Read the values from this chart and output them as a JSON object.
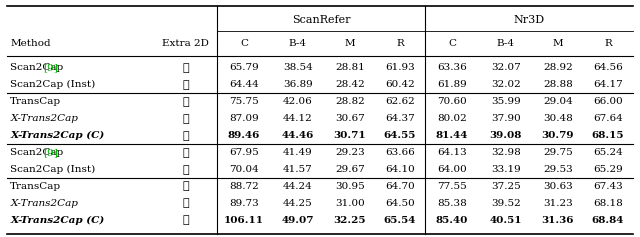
{
  "headers_top": [
    "ScanRefer",
    "Nr3D"
  ],
  "headers_sub": [
    "Method",
    "Extra 2D",
    "C",
    "B-4",
    "M",
    "R",
    "C",
    "B-4",
    "M",
    "R"
  ],
  "rows": [
    [
      "Scan2Cap [9]",
      "x_no",
      "65.79",
      "38.54",
      "28.81",
      "61.93",
      "63.36",
      "32.07",
      "28.92",
      "64.56",
      false
    ],
    [
      "Scan2Cap (Inst)",
      "x_no",
      "64.44",
      "36.89",
      "28.42",
      "60.42",
      "61.89",
      "32.02",
      "28.88",
      "64.17",
      false
    ],
    [
      "TransCap",
      "x_no",
      "75.75",
      "42.06",
      "28.82",
      "62.62",
      "70.60",
      "35.99",
      "29.04",
      "66.00",
      false
    ],
    [
      "X-Trans2Cap",
      "x_no",
      "87.09",
      "44.12",
      "30.67",
      "64.37",
      "80.02",
      "37.90",
      "30.48",
      "67.64",
      false
    ],
    [
      "X-Trans2Cap (C)",
      "x_no",
      "89.46",
      "44.46",
      "30.71",
      "64.55",
      "81.44",
      "39.08",
      "30.79",
      "68.15",
      true
    ],
    [
      "Scan2Cap [9]",
      "x_yes",
      "67.95",
      "41.49",
      "29.23",
      "63.66",
      "64.13",
      "32.98",
      "29.75",
      "65.24",
      false
    ],
    [
      "Scan2Cap (Inst)",
      "x_yes",
      "70.04",
      "41.57",
      "29.67",
      "64.10",
      "64.00",
      "33.19",
      "29.53",
      "65.29",
      false
    ],
    [
      "TransCap",
      "x_yes",
      "88.72",
      "44.24",
      "30.95",
      "64.70",
      "77.55",
      "37.25",
      "30.63",
      "67.43",
      false
    ],
    [
      "X-Trans2Cap",
      "x_yes",
      "89.73",
      "44.25",
      "31.00",
      "64.50",
      "85.38",
      "39.52",
      "31.23",
      "68.18",
      false
    ],
    [
      "X-Trans2Cap (C)",
      "x_yes",
      "106.11",
      "49.07",
      "32.25",
      "65.54",
      "85.40",
      "40.51",
      "31.36",
      "68.84",
      true
    ]
  ],
  "method_col_italic": [
    false,
    false,
    false,
    true,
    true,
    false,
    false,
    false,
    true,
    true
  ],
  "ref_color": "#00bb00",
  "bg_color": "#ffffff",
  "text_color": "#000000"
}
